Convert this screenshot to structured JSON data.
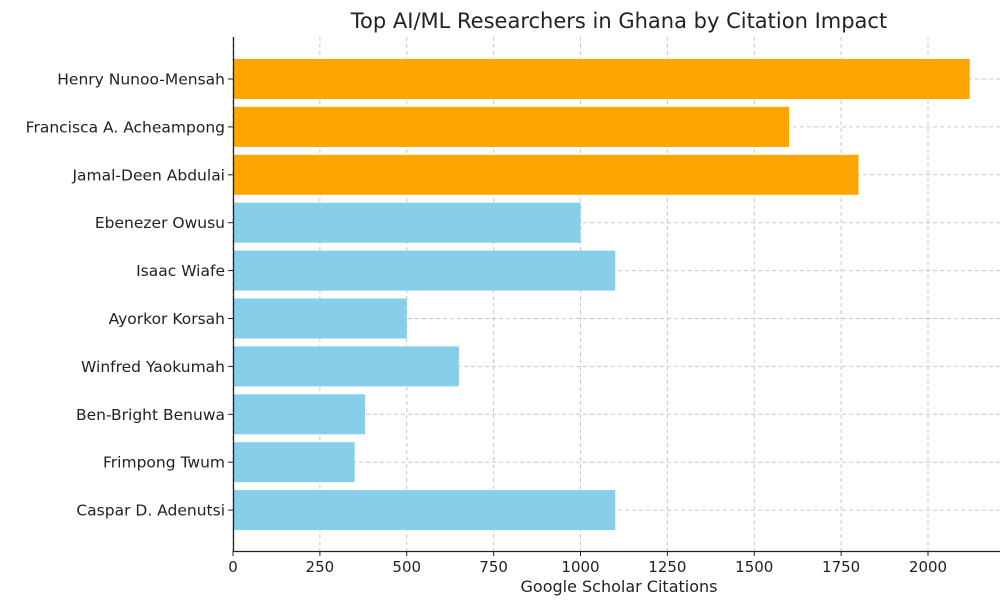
{
  "chart_data": {
    "type": "bar",
    "orientation": "horizontal",
    "title": "Top AI/ML Researchers in Ghana by Citation Impact",
    "xlabel": "Google Scholar Citations",
    "ylabel": "",
    "xlim": [
      0,
      2200
    ],
    "xticks": [
      0,
      250,
      500,
      750,
      1000,
      1250,
      1500,
      1750,
      2000
    ],
    "grid": true,
    "categories": [
      "Henry Nunoo-Mensah",
      "Francisca A. Acheampong",
      "Jamal-Deen Abdulai",
      "Ebenezer Owusu",
      "Isaac Wiafe",
      "Ayorkor Korsah",
      "Winfred Yaokumah",
      "Ben-Bright Benuwa",
      "Frimpong Twum",
      "Caspar D. Adenutsi"
    ],
    "values": [
      2120,
      1600,
      1800,
      1000,
      1100,
      500,
      650,
      380,
      350,
      1100
    ],
    "colors": [
      "#FFA500",
      "#FFA500",
      "#FFA500",
      "#87CEEB",
      "#87CEEB",
      "#87CEEB",
      "#87CEEB",
      "#87CEEB",
      "#87CEEB",
      "#87CEEB"
    ]
  }
}
